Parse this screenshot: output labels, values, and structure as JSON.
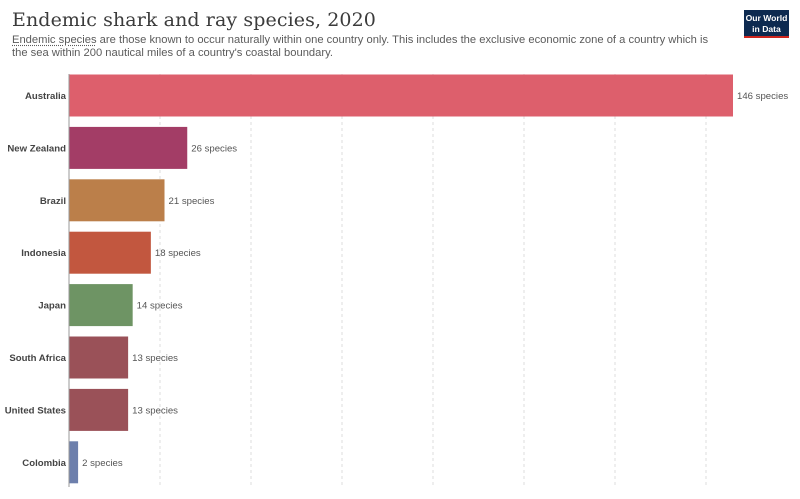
{
  "header": {
    "title": "Endemic shark and ray species, 2020",
    "subtitle_term": "Endemic species",
    "subtitle_rest": " are those known to occur naturally within one country only. This includes the exclusive economic zone of a country which is the sea within 200 nautical miles of a country's coastal boundary.",
    "logo_line1": "Our World",
    "logo_line2": "in Data"
  },
  "colors": {
    "logo_bg": "#0d2a50",
    "logo_accent": "#ce261e"
  },
  "chart_data": {
    "type": "bar",
    "orientation": "horizontal",
    "categories": [
      "Australia",
      "New Zealand",
      "Brazil",
      "Indonesia",
      "Japan",
      "South Africa",
      "United States",
      "Colombia"
    ],
    "values": [
      146,
      26,
      21,
      18,
      14,
      13,
      13,
      2
    ],
    "value_labels": [
      "146 species",
      "26 species",
      "21 species",
      "18 species",
      "14 species",
      "13 species",
      "13 species",
      "2 species"
    ],
    "colors": [
      "#dd5f6c",
      "#a33d66",
      "#bb7f4a",
      "#c2573f",
      "#6e9464",
      "#9a5158",
      "#9a5158",
      "#6d7fac"
    ],
    "xlim": [
      0,
      146
    ],
    "grid": true
  }
}
